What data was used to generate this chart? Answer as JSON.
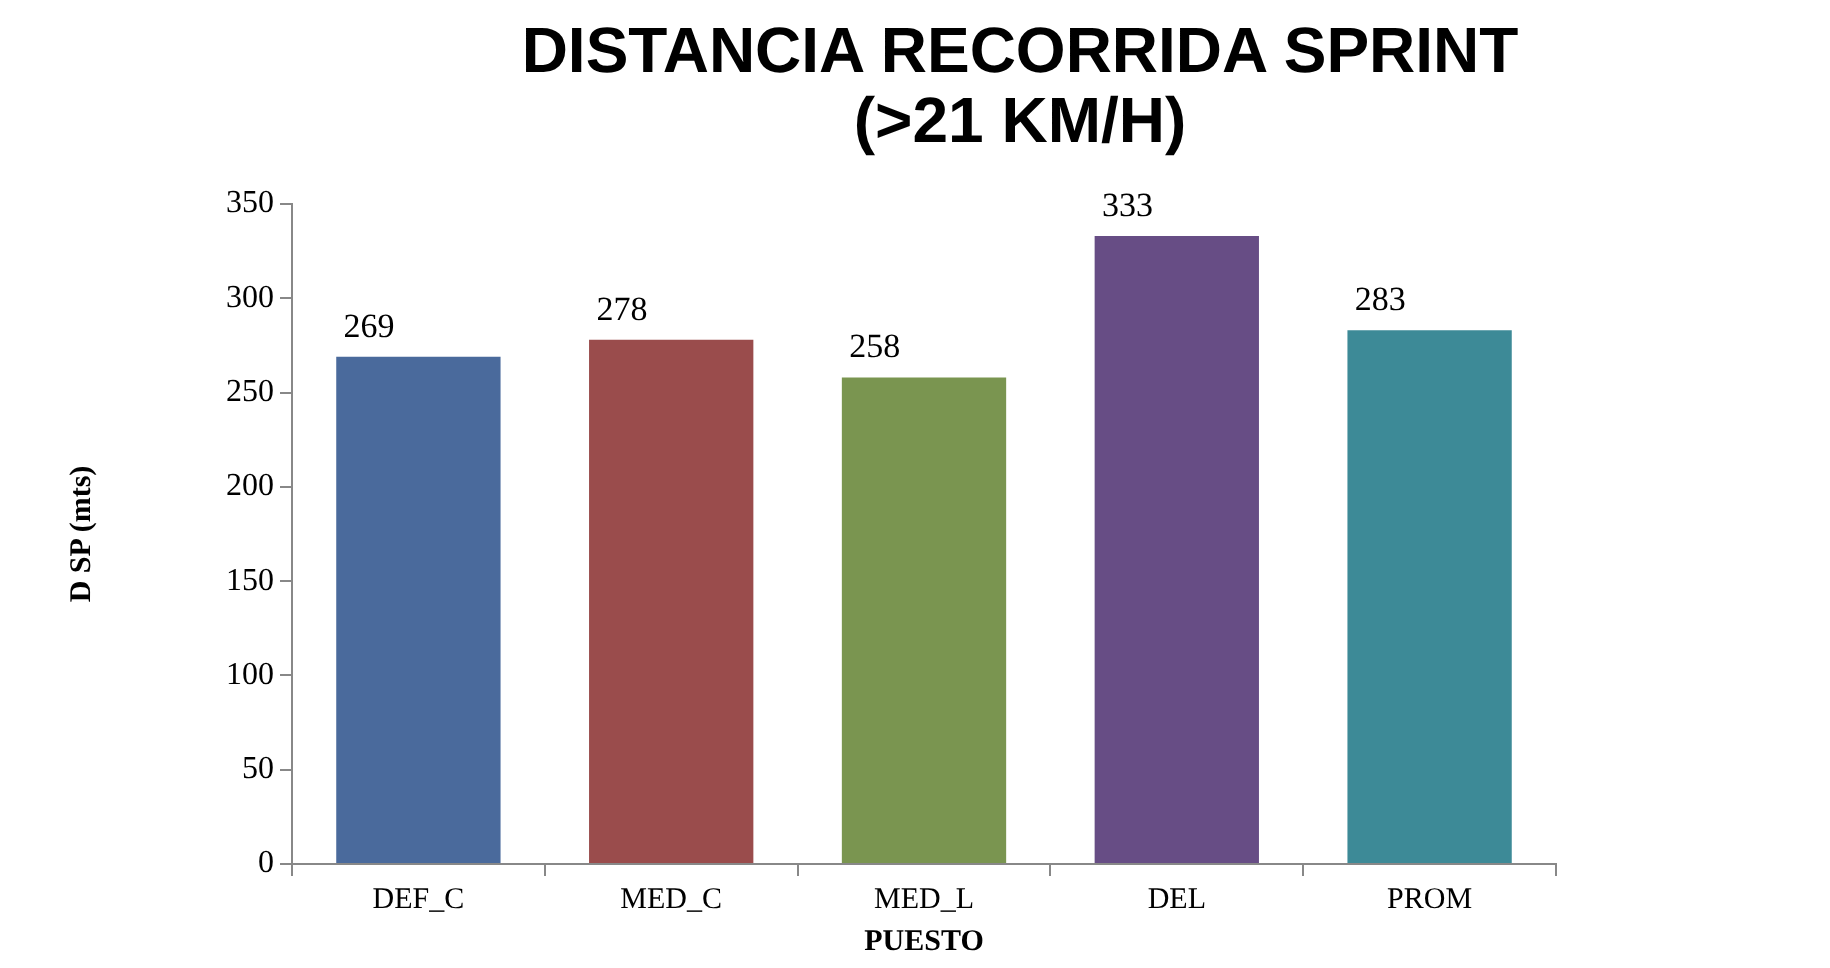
{
  "chart_data": {
    "type": "bar",
    "title": "DISTANCIA RECORRIDA SPRINT (>21 KM/H)",
    "xlabel": "PUESTO",
    "ylabel": "D SP (mts)",
    "categories": [
      "DEF_C",
      "MED_C",
      "MED_L",
      "DEL",
      "PROM"
    ],
    "values": [
      269,
      278,
      258,
      333,
      283
    ],
    "colors": [
      "#4a6a9c",
      "#9a4c4c",
      "#7a9550",
      "#674d85",
      "#3d8a97"
    ],
    "ylim": [
      0,
      350
    ],
    "yticks": [
      0,
      50,
      100,
      150,
      200,
      250,
      300,
      350
    ],
    "grid": false,
    "legend": false,
    "data_labels": true
  }
}
